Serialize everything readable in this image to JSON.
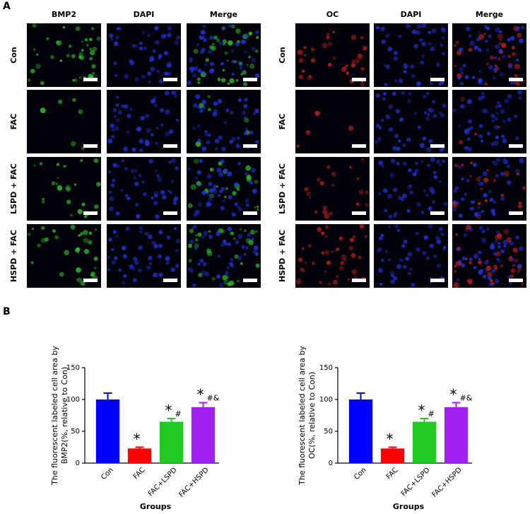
{
  "panel_labels": [
    "A",
    "B"
  ],
  "figure_a": [
    {
      "markers": [
        "BMP2",
        "DAPI",
        "Merge"
      ],
      "rows": [
        "Con",
        "FAC",
        "LSPD + FAC",
        "HSPD + FAC"
      ]
    },
    {
      "markers": [
        "OC",
        "DAPI",
        "Merge"
      ],
      "rows": [
        "Con",
        "FAC",
        "LSPD + FAC",
        "HSPD + FAC"
      ]
    }
  ],
  "chart_data": [
    {
      "type": "bar",
      "y_label": [
        "The fluorescent labeled cell area by",
        "BMP2(%, relative to Con)"
      ],
      "x_label": "Groups",
      "categories": [
        "Con",
        "FAC",
        "FAC+LSPD",
        "FAC+HSPD"
      ],
      "values": [
        100,
        23,
        65,
        88
      ],
      "errors": [
        10,
        2,
        5,
        7
      ],
      "colors": [
        "#0000ff",
        "#ff0000",
        "#22c922",
        "#a020f0"
      ],
      "star_labels": [
        null,
        "*",
        "*",
        "*"
      ],
      "mark_labels": [
        null,
        null,
        "#",
        "#&"
      ],
      "ylim": [
        0,
        150
      ],
      "yticks": [
        0,
        50,
        100,
        150
      ]
    },
    {
      "type": "bar",
      "y_label": [
        "The fluorescent labeled cell area by",
        "OC(%, relative to Con)"
      ],
      "x_label": "Groups",
      "categories": [
        "Con",
        "FAC",
        "FAC+LSPD",
        "FAC+HSPD"
      ],
      "values": [
        100,
        23,
        65,
        88
      ],
      "errors": [
        10,
        2,
        5,
        7
      ],
      "colors": [
        "#0000ff",
        "#ff0000",
        "#22c922",
        "#a020f0"
      ],
      "star_labels": [
        null,
        "*",
        "*",
        "*"
      ],
      "mark_labels": [
        null,
        null,
        "#",
        "#&"
      ],
      "ylim": [
        0,
        150
      ],
      "yticks": [
        0,
        50,
        100,
        150
      ]
    }
  ]
}
